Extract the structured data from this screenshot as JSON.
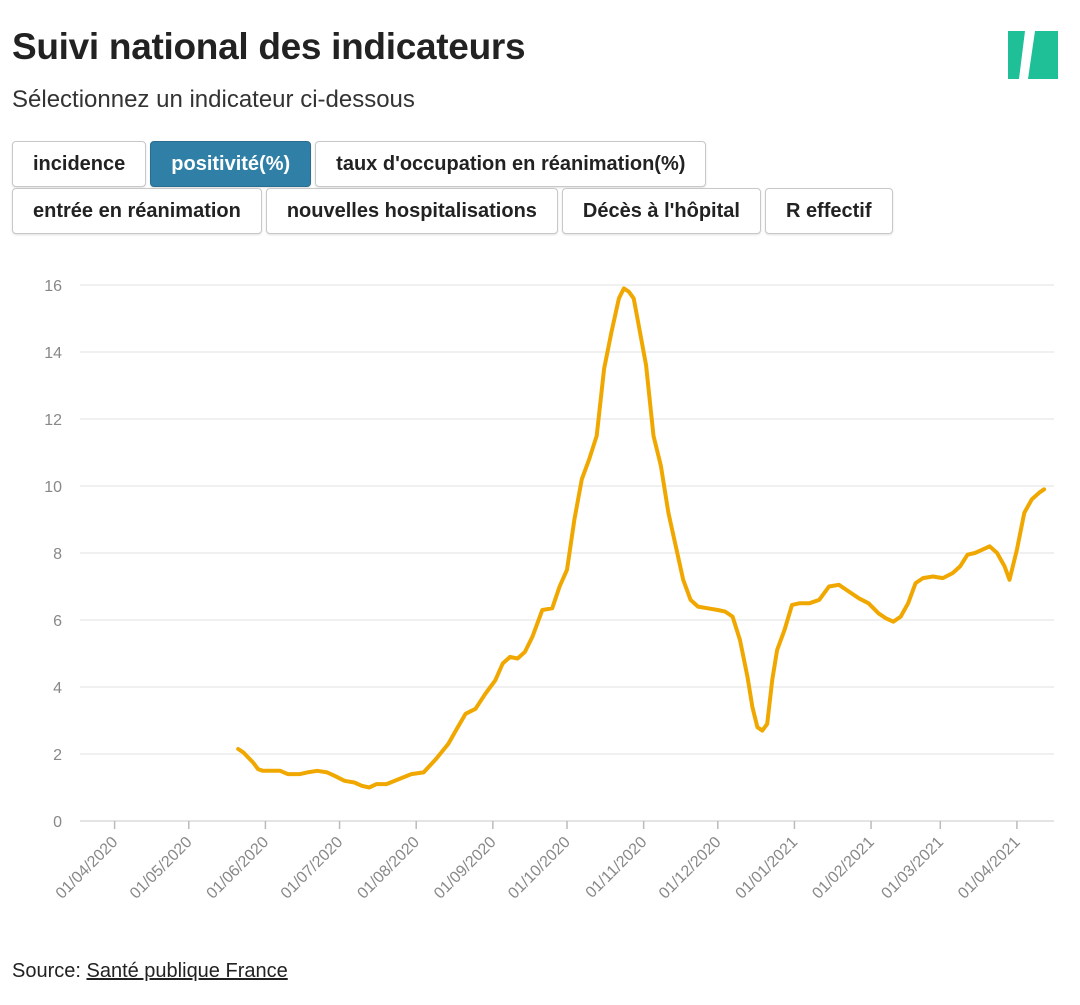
{
  "header": {
    "title": "Suivi national des indicateurs",
    "subtitle": "Sélectionnez un indicateur ci-dessous"
  },
  "colors": {
    "accent": "#2f7fa6",
    "line": "#f0a800",
    "logo": "#1fbf98"
  },
  "tabs": [
    {
      "label": "incidence",
      "active": false
    },
    {
      "label": "positivité(%)",
      "active": true
    },
    {
      "label": "taux d'occupation en réanimation(%)",
      "active": false
    },
    {
      "label": "entrée en réanimation",
      "active": false
    },
    {
      "label": "nouvelles hospitalisations",
      "active": false
    },
    {
      "label": "Décès à l'hôpital",
      "active": false
    },
    {
      "label": "R effectif",
      "active": false
    }
  ],
  "footer": {
    "source_prefix": "Source: ",
    "source_link": "Santé publique France"
  },
  "chart_data": {
    "type": "line",
    "title": "positivité(%)",
    "xlabel": "",
    "ylabel": "",
    "ylim": [
      0,
      16
    ],
    "yticks": [
      0,
      2,
      4,
      6,
      8,
      10,
      12,
      14,
      16
    ],
    "xlim_days": [
      -4,
      374
    ],
    "xticks": [
      {
        "label": "01/04/2020",
        "day": 10
      },
      {
        "label": "01/05/2020",
        "day": 40
      },
      {
        "label": "01/06/2020",
        "day": 71
      },
      {
        "label": "01/07/2020",
        "day": 101
      },
      {
        "label": "01/08/2020",
        "day": 132
      },
      {
        "label": "01/09/2020",
        "day": 163
      },
      {
        "label": "01/10/2020",
        "day": 193
      },
      {
        "label": "01/11/2020",
        "day": 224
      },
      {
        "label": "01/12/2020",
        "day": 254
      },
      {
        "label": "01/01/2021",
        "day": 285
      },
      {
        "label": "01/02/2021",
        "day": 316
      },
      {
        "label": "01/03/2021",
        "day": 344
      },
      {
        "label": "01/04/2021",
        "day": 375
      }
    ],
    "grid": true,
    "series": [
      {
        "name": "positivité(%)",
        "start_day": 60,
        "points": [
          [
            60,
            2.15
          ],
          [
            62,
            2.05
          ],
          [
            64,
            1.9
          ],
          [
            66,
            1.75
          ],
          [
            68,
            1.55
          ],
          [
            70,
            1.5
          ],
          [
            73,
            1.5
          ],
          [
            77,
            1.5
          ],
          [
            80,
            1.4
          ],
          [
            85,
            1.4
          ],
          [
            88,
            1.45
          ],
          [
            92,
            1.5
          ],
          [
            96,
            1.45
          ],
          [
            99,
            1.35
          ],
          [
            103,
            1.2
          ],
          [
            107,
            1.15
          ],
          [
            110,
            1.05
          ],
          [
            113,
            1.0
          ],
          [
            116,
            1.1
          ],
          [
            120,
            1.1
          ],
          [
            125,
            1.25
          ],
          [
            130,
            1.4
          ],
          [
            135,
            1.45
          ],
          [
            140,
            1.85
          ],
          [
            145,
            2.3
          ],
          [
            148,
            2.7
          ],
          [
            152,
            3.2
          ],
          [
            156,
            3.35
          ],
          [
            160,
            3.8
          ],
          [
            164,
            4.2
          ],
          [
            167,
            4.7
          ],
          [
            170,
            4.9
          ],
          [
            173,
            4.85
          ],
          [
            176,
            5.05
          ],
          [
            179,
            5.5
          ],
          [
            183,
            6.3
          ],
          [
            187,
            6.35
          ],
          [
            190,
            7.0
          ],
          [
            193,
            7.5
          ],
          [
            196,
            9.0
          ],
          [
            199,
            10.2
          ],
          [
            202,
            10.8
          ],
          [
            205,
            11.5
          ],
          [
            208,
            13.5
          ],
          [
            211,
            14.6
          ],
          [
            214,
            15.6
          ],
          [
            216,
            15.9
          ],
          [
            218,
            15.8
          ],
          [
            220,
            15.6
          ],
          [
            222,
            14.8
          ],
          [
            225,
            13.6
          ],
          [
            228,
            11.5
          ],
          [
            231,
            10.6
          ],
          [
            234,
            9.2
          ],
          [
            237,
            8.2
          ],
          [
            240,
            7.2
          ],
          [
            243,
            6.6
          ],
          [
            246,
            6.4
          ],
          [
            250,
            6.35
          ],
          [
            254,
            6.3
          ],
          [
            257,
            6.25
          ],
          [
            260,
            6.1
          ],
          [
            263,
            5.4
          ],
          [
            266,
            4.3
          ],
          [
            268,
            3.4
          ],
          [
            270,
            2.8
          ],
          [
            272,
            2.7
          ],
          [
            274,
            2.9
          ],
          [
            276,
            4.2
          ],
          [
            278,
            5.1
          ],
          [
            281,
            5.7
          ],
          [
            284,
            6.45
          ],
          [
            287,
            6.5
          ],
          [
            291,
            6.5
          ],
          [
            295,
            6.6
          ],
          [
            299,
            7.0
          ],
          [
            303,
            7.05
          ],
          [
            307,
            6.85
          ],
          [
            311,
            6.65
          ],
          [
            315,
            6.5
          ],
          [
            319,
            6.2
          ],
          [
            322,
            6.05
          ],
          [
            325,
            5.95
          ],
          [
            328,
            6.1
          ],
          [
            331,
            6.5
          ],
          [
            334,
            7.1
          ],
          [
            337,
            7.25
          ],
          [
            341,
            7.3
          ],
          [
            345,
            7.25
          ],
          [
            349,
            7.4
          ],
          [
            352,
            7.6
          ],
          [
            355,
            7.95
          ],
          [
            358,
            8.0
          ],
          [
            361,
            8.1
          ],
          [
            364,
            8.2
          ],
          [
            367,
            8.0
          ],
          [
            370,
            7.6
          ],
          [
            372,
            7.2
          ],
          [
            375,
            8.1
          ],
          [
            378,
            9.2
          ],
          [
            381,
            9.6
          ],
          [
            384,
            9.8
          ],
          [
            386,
            9.9
          ]
        ]
      }
    ]
  }
}
